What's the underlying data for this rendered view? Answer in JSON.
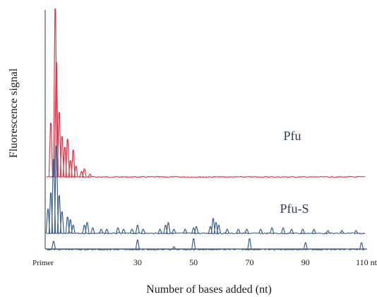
{
  "chart_data": {
    "type": "line",
    "title": "",
    "xlabel": "Number of bases added (nt)",
    "ylabel": "Fluorescence signal",
    "xlim": [
      -3,
      112
    ],
    "x_tick_labels": [
      {
        "x": 0,
        "label": "Primer"
      },
      {
        "x": 30,
        "label": "30"
      },
      {
        "x": 50,
        "label": "50"
      },
      {
        "x": 70,
        "label": "70"
      },
      {
        "x": 90,
        "label": "90"
      },
      {
        "x": 110,
        "label": "110 nt"
      }
    ],
    "grid": false,
    "series": [
      {
        "name": "Pfu",
        "color": "#d83a4a",
        "baseline": 0.42,
        "peaks": [
          [
            -1,
            0.4
          ],
          [
            0.6,
            1.25
          ],
          [
            1,
            0.85
          ],
          [
            2,
            0.48
          ],
          [
            3,
            0.3
          ],
          [
            4,
            0.22
          ],
          [
            5,
            0.28
          ],
          [
            6,
            0.12
          ],
          [
            7,
            0.2
          ],
          [
            8,
            0.08
          ],
          [
            10,
            0.04
          ],
          [
            11,
            0.06
          ],
          [
            13,
            0.02
          ]
        ]
      },
      {
        "name": "Pfu-S",
        "color": "#3c5f8f",
        "baseline": 0.0,
        "peaks": [
          [
            -2,
            0.18
          ],
          [
            -1,
            0.3
          ],
          [
            0,
            0.55
          ],
          [
            1,
            0.65
          ],
          [
            2,
            0.28
          ],
          [
            3,
            0.16
          ],
          [
            5,
            0.12
          ],
          [
            6,
            0.1
          ],
          [
            7,
            0.06
          ],
          [
            11,
            0.06
          ],
          [
            12,
            0.08
          ],
          [
            14,
            0.04
          ],
          [
            17,
            0.03
          ],
          [
            19,
            0.03
          ],
          [
            23,
            0.04
          ],
          [
            25,
            0.03
          ],
          [
            28,
            0.03
          ],
          [
            30,
            0.06
          ],
          [
            32,
            0.03
          ],
          [
            38,
            0.03
          ],
          [
            40,
            0.06
          ],
          [
            41,
            0.08
          ],
          [
            43,
            0.03
          ],
          [
            47,
            0.03
          ],
          [
            50,
            0.04
          ],
          [
            51,
            0.05
          ],
          [
            56,
            0.05
          ],
          [
            57,
            0.11
          ],
          [
            58,
            0.08
          ],
          [
            59,
            0.06
          ],
          [
            62,
            0.03
          ],
          [
            66,
            0.03
          ],
          [
            69,
            0.03
          ],
          [
            74,
            0.03
          ],
          [
            78,
            0.04
          ],
          [
            82,
            0.04
          ],
          [
            85,
            0.03
          ],
          [
            89,
            0.03
          ],
          [
            93,
            0.03
          ],
          [
            98,
            0.02
          ],
          [
            103,
            0.02
          ],
          [
            108,
            0.02
          ]
        ]
      },
      {
        "name": "",
        "color": "#3c5f8f",
        "baseline": -0.12,
        "peaks": [
          [
            0,
            0.06
          ],
          [
            30,
            0.07
          ],
          [
            43,
            0.02
          ],
          [
            50,
            0.08
          ],
          [
            70,
            0.08
          ],
          [
            90,
            0.05
          ],
          [
            110,
            0.05
          ]
        ]
      }
    ],
    "legend": [
      {
        "label": "Pfu",
        "series": 0
      },
      {
        "label": "Pfu-S",
        "series": 1
      }
    ]
  }
}
